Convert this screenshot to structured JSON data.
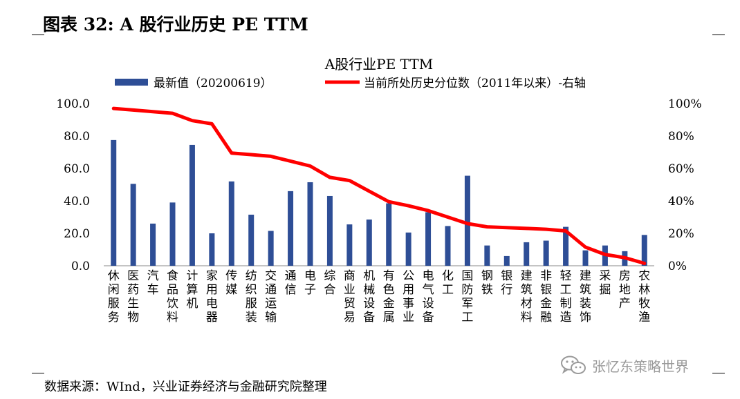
{
  "figure_title": "图表 32:  A 股行业历史 PE TTM",
  "source_note": "数据来源：WInd，兴业证券经济与金融研究院整理",
  "watermark": "张忆东策略世界",
  "watermark_icon": "wechat-icon",
  "colors": {
    "bar": "#2E4E96",
    "line": "#FF0000"
  },
  "chart_data": {
    "type": "bar",
    "title": "A股行业PE  TTM",
    "legend_position": "top",
    "grid": false,
    "categories": [
      "休闲服务",
      "医药生物",
      "汽车",
      "食品饮料",
      "计算机",
      "家用电器",
      "传媒",
      "纺织服装",
      "交通运输",
      "通信",
      "电子",
      "综合",
      "商业贸易",
      "机械设备",
      "有色金属",
      "公用事业",
      "电气设备",
      "化工",
      "国防军工",
      "钢铁",
      "银行",
      "建筑材料",
      "非银金融",
      "轻工制造",
      "建筑装饰",
      "采掘",
      "房地产",
      "农林牧渔"
    ],
    "series": [
      {
        "name": "最新值（20200619）",
        "type": "bar",
        "axis": "left",
        "values": [
          77.5,
          50.5,
          26.0,
          39.0,
          74.5,
          20.0,
          52.0,
          31.5,
          21.5,
          46.0,
          51.5,
          43.0,
          25.5,
          28.5,
          38.5,
          20.5,
          33.0,
          24.5,
          55.5,
          12.5,
          6.0,
          14.5,
          15.5,
          24.0,
          9.5,
          12.5,
          9.0,
          19.0
        ]
      },
      {
        "name": "当前所处历史分位数（2011年以来）-右轴",
        "type": "line",
        "axis": "right",
        "values": [
          0.97,
          0.96,
          0.95,
          0.94,
          0.895,
          0.875,
          0.695,
          0.685,
          0.675,
          0.645,
          0.615,
          0.545,
          0.525,
          0.46,
          0.395,
          0.37,
          0.34,
          0.3,
          0.26,
          0.24,
          0.235,
          0.23,
          0.225,
          0.215,
          0.115,
          0.07,
          0.05,
          0.015
        ]
      }
    ],
    "y_left": {
      "min": 0,
      "max": 100,
      "ticks": [
        "0.0",
        "20.0",
        "40.0",
        "60.0",
        "80.0",
        "100.0"
      ]
    },
    "y_right": {
      "min": 0,
      "max": 1,
      "ticks": [
        "0%",
        "20%",
        "40%",
        "60%",
        "80%",
        "100%"
      ]
    }
  }
}
